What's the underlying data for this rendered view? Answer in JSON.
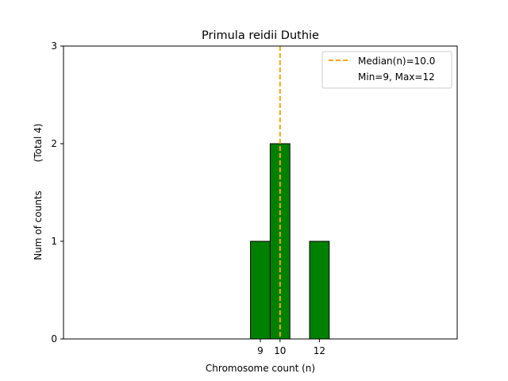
{
  "chart_data": {
    "type": "bar",
    "title": "Primula reidii Duthie",
    "xlabel": "Chromosome count (n)",
    "ylabel": "Num of counts",
    "ylabel_note": "(Total 4)",
    "x_ticks": [
      9,
      10,
      12
    ],
    "y_ticks": [
      0,
      1,
      2,
      3
    ],
    "xlim": [
      -1,
      19
    ],
    "ylim": [
      0,
      3
    ],
    "categories": [
      9,
      10,
      12
    ],
    "values": [
      1,
      2,
      1
    ],
    "bar_width": 1,
    "bar_color": "#008000",
    "bar_edge_color": "#000000",
    "baseline_x_range": [
      -1,
      15.5
    ],
    "median": 10.0,
    "median_color": "#ffa500",
    "legend": {
      "position": "top-right",
      "entries": [
        "Median(n)=10.0",
        "Min=9, Max=12"
      ]
    }
  }
}
